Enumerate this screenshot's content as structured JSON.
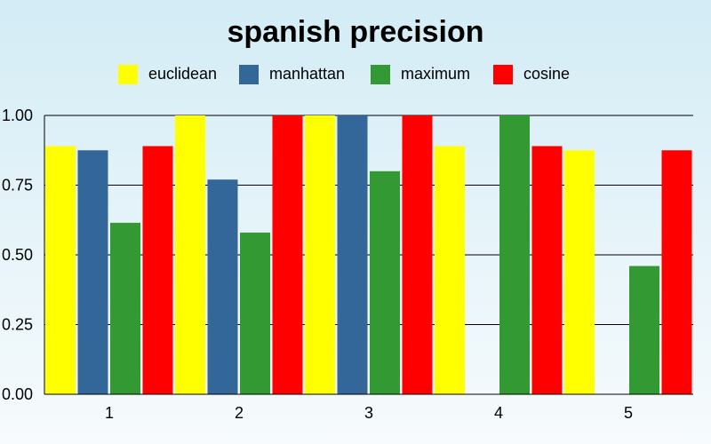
{
  "chart_data": {
    "type": "bar",
    "title": "spanish precision",
    "xlabel": "",
    "ylabel": "",
    "categories": [
      "1",
      "2",
      "3",
      "4",
      "5"
    ],
    "series": [
      {
        "name": "euclidean",
        "color": "#ffff00",
        "values": [
          0.89,
          1.0,
          1.0,
          0.89,
          0.875
        ]
      },
      {
        "name": "manhattan",
        "color": "#336699",
        "values": [
          0.875,
          0.77,
          1.0,
          0,
          0
        ]
      },
      {
        "name": "maximum",
        "color": "#339933",
        "values": [
          0.615,
          0.58,
          0.8,
          1.0,
          0.46
        ]
      },
      {
        "name": "cosine",
        "color": "#ff0000",
        "values": [
          0.89,
          1.0,
          1.0,
          0.89,
          0.875
        ]
      }
    ],
    "ylim": [
      0,
      1.0
    ],
    "yticks": [
      "0.00",
      "0.25",
      "0.50",
      "0.75",
      "1.00"
    ],
    "ytick_values": [
      0,
      0.25,
      0.5,
      0.75,
      1.0
    ],
    "grid": true,
    "legend": "top-center"
  }
}
